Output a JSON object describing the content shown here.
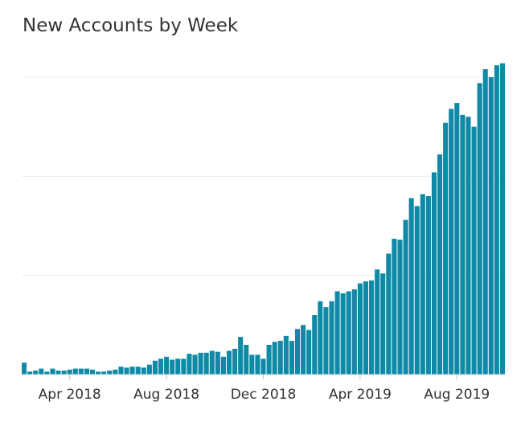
{
  "chart_data": {
    "type": "bar",
    "title": "New Accounts by Week",
    "xlabel": "",
    "ylabel": "",
    "y_tick_labels_shown": false,
    "grid": "horizontal",
    "bar_color": "#0f8aa6",
    "gridline_color": "#ececec",
    "x_tick_labels": [
      "Apr 2018",
      "Aug 2018",
      "Dec 2018",
      "Apr 2019",
      "Aug 2019"
    ],
    "x_tick_bar_index": [
      8,
      25,
      42,
      59,
      76
    ],
    "ylim": [
      0,
      150
    ],
    "gridline_values": [
      50,
      100,
      150
    ],
    "values": [
      6,
      1.5,
      2,
      3,
      1.5,
      3,
      2,
      2,
      2.5,
      3,
      3,
      3,
      2.5,
      1.5,
      1.5,
      2,
      2.5,
      4,
      3.5,
      4,
      4,
      3.5,
      5,
      7,
      8,
      9,
      7.5,
      8,
      8,
      10.5,
      10,
      11,
      11,
      12,
      11.5,
      9,
      12,
      13,
      19,
      15,
      10,
      10,
      8,
      15,
      16.5,
      17,
      19.5,
      17,
      23,
      25,
      22.5,
      30,
      37,
      34,
      37,
      42,
      41,
      42,
      43,
      46,
      47,
      47.5,
      53,
      51,
      61,
      68.5,
      68,
      78,
      89,
      85,
      91,
      90,
      102,
      111,
      127,
      134,
      137,
      131,
      130,
      125,
      147,
      154,
      150,
      156,
      157
    ]
  }
}
